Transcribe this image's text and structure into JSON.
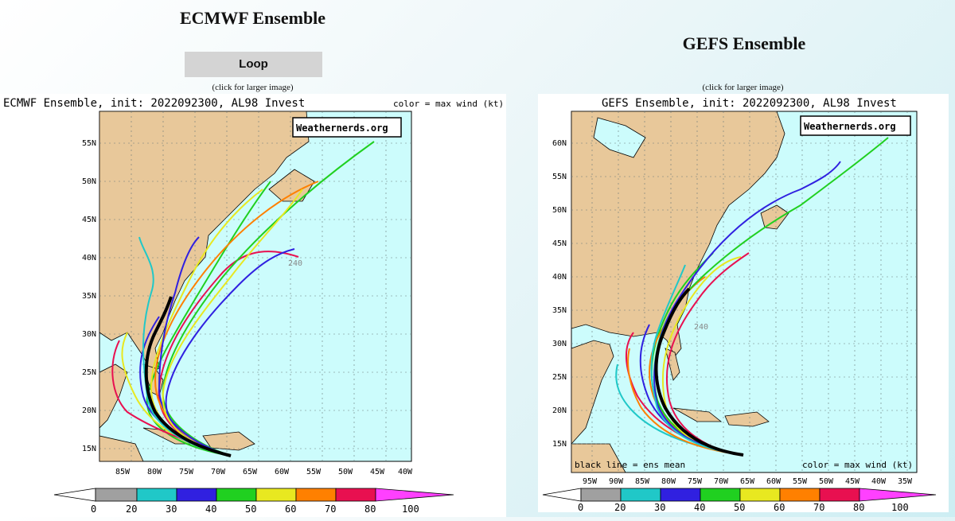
{
  "ecmwf": {
    "heading": "ECMWF Ensemble",
    "loop_label": "Loop",
    "click_note": "(click for larger image)",
    "map_title": "ECMWF Ensemble, init: 2022092300, AL98 Invest",
    "color_note": "color = max wind (kt)",
    "watermark": "Weathernerds.org",
    "lat_labels": [
      "55N",
      "50N",
      "45N",
      "40N",
      "35N",
      "30N",
      "25N",
      "20N",
      "15N"
    ],
    "lon_labels": [
      "85W",
      "80W",
      "75W",
      "70W",
      "65W",
      "60W",
      "55W",
      "50W",
      "45W",
      "40W"
    ],
    "hour_label": "240"
  },
  "gefs": {
    "heading": "GEFS Ensemble",
    "click_note": "(click for larger image)",
    "map_title": "GEFS Ensemble, init: 2022092300, AL98 Invest",
    "color_note": "color = max wind (kt)",
    "mean_note": "black line = ens mean",
    "watermark": "Weathernerds.org",
    "lat_labels": [
      "60N",
      "55N",
      "50N",
      "45N",
      "40N",
      "35N",
      "30N",
      "25N",
      "20N",
      "15N"
    ],
    "lon_labels": [
      "95W",
      "90W",
      "85W",
      "80W",
      "75W",
      "70W",
      "65W",
      "60W",
      "55W",
      "50W",
      "45W",
      "40W",
      "35W"
    ],
    "hour_label": "240"
  },
  "colorbar": {
    "ticks": [
      "0",
      "20",
      "30",
      "40",
      "50",
      "60",
      "70",
      "80",
      "100"
    ],
    "colors": [
      "#ffffff",
      "#a0a0a0",
      "#20c8c8",
      "#3020e0",
      "#20d020",
      "#e8e820",
      "#ff8000",
      "#e81050",
      "#ff40ff"
    ]
  },
  "colors": {
    "ocean": "#ccfcfc",
    "land": "#e8c89a",
    "grid": "#7a8a8a"
  }
}
